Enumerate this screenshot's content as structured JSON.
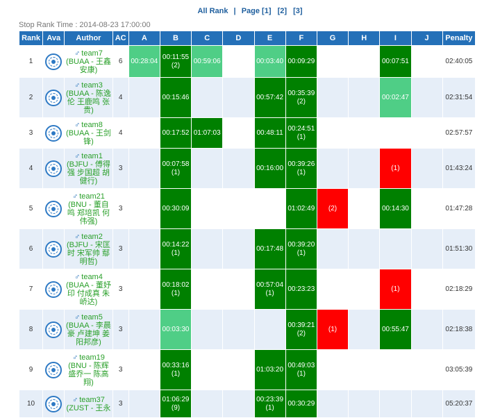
{
  "nav": {
    "all_rank": "All Rank",
    "sep": "|",
    "page_label": "Page",
    "pages": [
      "[1]",
      "[2]",
      "[3]"
    ]
  },
  "stop_time": "Stop Rank Time : 2014-08-23 17:00:00",
  "headers": [
    "Rank",
    "Ava",
    "Author",
    "AC",
    "A",
    "B",
    "C",
    "D",
    "E",
    "F",
    "G",
    "H",
    "I",
    "J",
    "Penalty"
  ],
  "colors": {
    "ac": "#008000",
    "first_blood": "#4fce86",
    "wrong": "#ff0000",
    "header": "#2470b8"
  },
  "icons": {
    "gender": "♂",
    "avatar": "university-seal-icon"
  },
  "rows": [
    {
      "rank": "1",
      "team": "team7",
      "members": "(BUAA - 王鑫 安康)",
      "ac": "6",
      "penalty": "02:40:05",
      "cells": [
        [
          "fb",
          "00:28:04",
          ""
        ],
        [
          "ac",
          "00:11:55",
          "(2)"
        ],
        [
          "fb",
          "00:59:06",
          ""
        ],
        [
          "",
          "",
          " "
        ],
        [
          "fb",
          "00:03:40",
          ""
        ],
        [
          "ac",
          "00:09:29",
          ""
        ],
        [
          "",
          "",
          ""
        ],
        [
          "",
          "",
          ""
        ],
        [
          "ac",
          "00:07:51",
          ""
        ],
        [
          "",
          "",
          ""
        ]
      ]
    },
    {
      "rank": "2",
      "team": "team3",
      "members": "(BUAA - 陈逸伦 王鹿鸣 张贵)",
      "ac": "4",
      "penalty": "02:31:54",
      "cells": [
        [
          "",
          "",
          ""
        ],
        [
          "ac",
          "00:15:46",
          ""
        ],
        [
          "",
          "",
          ""
        ],
        [
          "",
          "",
          ""
        ],
        [
          "ac",
          "00:57:42",
          ""
        ],
        [
          "ac",
          "00:35:39",
          "(2)"
        ],
        [
          "",
          "",
          ""
        ],
        [
          "",
          "",
          ""
        ],
        [
          "fb",
          "00:02:47",
          ""
        ],
        [
          "",
          "",
          ""
        ]
      ]
    },
    {
      "rank": "3",
      "team": "team8",
      "members": "(BUAA - 王剑锋)",
      "ac": "4",
      "penalty": "02:57:57",
      "cells": [
        [
          "",
          "",
          ""
        ],
        [
          "ac",
          "00:17:52",
          ""
        ],
        [
          "ac",
          "01:07:03",
          ""
        ],
        [
          "",
          "",
          ""
        ],
        [
          "ac",
          "00:48:11",
          ""
        ],
        [
          "ac",
          "00:24:51",
          "(1)"
        ],
        [
          "",
          "",
          ""
        ],
        [
          "",
          "",
          ""
        ],
        [
          "",
          "",
          ""
        ],
        [
          "",
          "",
          ""
        ]
      ]
    },
    {
      "rank": "4",
      "team": "team1",
      "members": "(BJFU - 傅得强 步国超 胡健行)",
      "ac": "3",
      "penalty": "01:43:24",
      "cells": [
        [
          "",
          "",
          ""
        ],
        [
          "ac",
          "00:07:58",
          "(1)"
        ],
        [
          "",
          "",
          ""
        ],
        [
          "",
          "",
          ""
        ],
        [
          "ac",
          "00:16:00",
          ""
        ],
        [
          "ac",
          "00:39:26",
          "(1)"
        ],
        [
          "",
          "",
          ""
        ],
        [
          "",
          "",
          ""
        ],
        [
          "wa",
          "",
          "(1)"
        ],
        [
          "",
          "",
          ""
        ]
      ]
    },
    {
      "rank": "5",
      "team": "team21",
      "members": "(BNU - 董自鸣 郑培凯 何伟强)",
      "ac": "3",
      "penalty": "01:47:28",
      "cells": [
        [
          "",
          "",
          ""
        ],
        [
          "ac",
          "00:30:09",
          ""
        ],
        [
          "",
          "",
          ""
        ],
        [
          "",
          "",
          ""
        ],
        [
          "",
          "",
          ""
        ],
        [
          "ac",
          "01:02:49",
          ""
        ],
        [
          "wa",
          "",
          "(2)"
        ],
        [
          "",
          "",
          ""
        ],
        [
          "ac",
          "00:14:30",
          ""
        ],
        [
          "",
          "",
          ""
        ]
      ]
    },
    {
      "rank": "6",
      "team": "team2",
      "members": "(BJFU - 宋匡时 宋军帅 鄢明哲)",
      "ac": "3",
      "penalty": "01:51:30",
      "cells": [
        [
          "",
          "",
          ""
        ],
        [
          "ac",
          "00:14:22",
          "(1)"
        ],
        [
          "",
          "",
          ""
        ],
        [
          "",
          "",
          ""
        ],
        [
          "ac",
          "00:17:48",
          ""
        ],
        [
          "ac",
          "00:39:20",
          "(1)"
        ],
        [
          "",
          "",
          ""
        ],
        [
          "",
          "",
          ""
        ],
        [
          "",
          "",
          ""
        ],
        [
          "",
          "",
          ""
        ]
      ]
    },
    {
      "rank": "7",
      "team": "team4",
      "members": "(BUAA - 董妤印 付成真 朱峤达)",
      "ac": "3",
      "penalty": "02:18:29",
      "cells": [
        [
          "",
          "",
          ""
        ],
        [
          "ac",
          "00:18:02",
          "(1)"
        ],
        [
          "",
          "",
          ""
        ],
        [
          "",
          "",
          ""
        ],
        [
          "ac",
          "00:57:04",
          "(1)"
        ],
        [
          "ac",
          "00:23:23",
          ""
        ],
        [
          "",
          "",
          ""
        ],
        [
          "",
          "",
          ""
        ],
        [
          "wa",
          "",
          "(1)"
        ],
        [
          "",
          "",
          ""
        ]
      ]
    },
    {
      "rank": "8",
      "team": "team5",
      "members": "(BUAA - 李晨豪 卢建坤 姜阳邦彦)",
      "ac": "3",
      "penalty": "02:18:38",
      "cells": [
        [
          "",
          "",
          ""
        ],
        [
          "fb",
          "00:03:30",
          ""
        ],
        [
          "",
          "",
          ""
        ],
        [
          "",
          "",
          ""
        ],
        [
          "",
          "",
          ""
        ],
        [
          "ac",
          "00:39:21",
          "(2)"
        ],
        [
          "wa",
          "",
          "(1)"
        ],
        [
          "",
          "",
          ""
        ],
        [
          "ac",
          "00:55:47",
          ""
        ],
        [
          "",
          "",
          ""
        ]
      ]
    },
    {
      "rank": "9",
      "team": "team19",
      "members": "(BNU - 陈辉 盛乔一 陈高翔)",
      "ac": "3",
      "penalty": "03:05:39",
      "cells": [
        [
          "",
          "",
          ""
        ],
        [
          "ac",
          "00:33:16",
          "(1)"
        ],
        [
          "",
          "",
          ""
        ],
        [
          "",
          "",
          ""
        ],
        [
          "ac",
          "01:03:20",
          ""
        ],
        [
          "ac",
          "00:49:03",
          "(1)"
        ],
        [
          "",
          "",
          ""
        ],
        [
          "",
          "",
          ""
        ],
        [
          "",
          "",
          ""
        ],
        [
          "",
          "",
          ""
        ]
      ]
    },
    {
      "rank": "10",
      "team": "team37",
      "members": "(ZUST - 王永",
      "ac": "3",
      "penalty": "05:20:37",
      "cells": [
        [
          "",
          "",
          ""
        ],
        [
          "ac",
          "01:06:29",
          "(9)"
        ],
        [
          "",
          "",
          ""
        ],
        [
          "",
          "",
          ""
        ],
        [
          "ac",
          "00:23:39",
          "(1)"
        ],
        [
          "ac",
          "00:30:29",
          ""
        ],
        [
          "",
          "",
          ""
        ],
        [
          "",
          "",
          ""
        ],
        [
          "",
          "",
          ""
        ],
        [
          "",
          "",
          ""
        ]
      ]
    }
  ]
}
